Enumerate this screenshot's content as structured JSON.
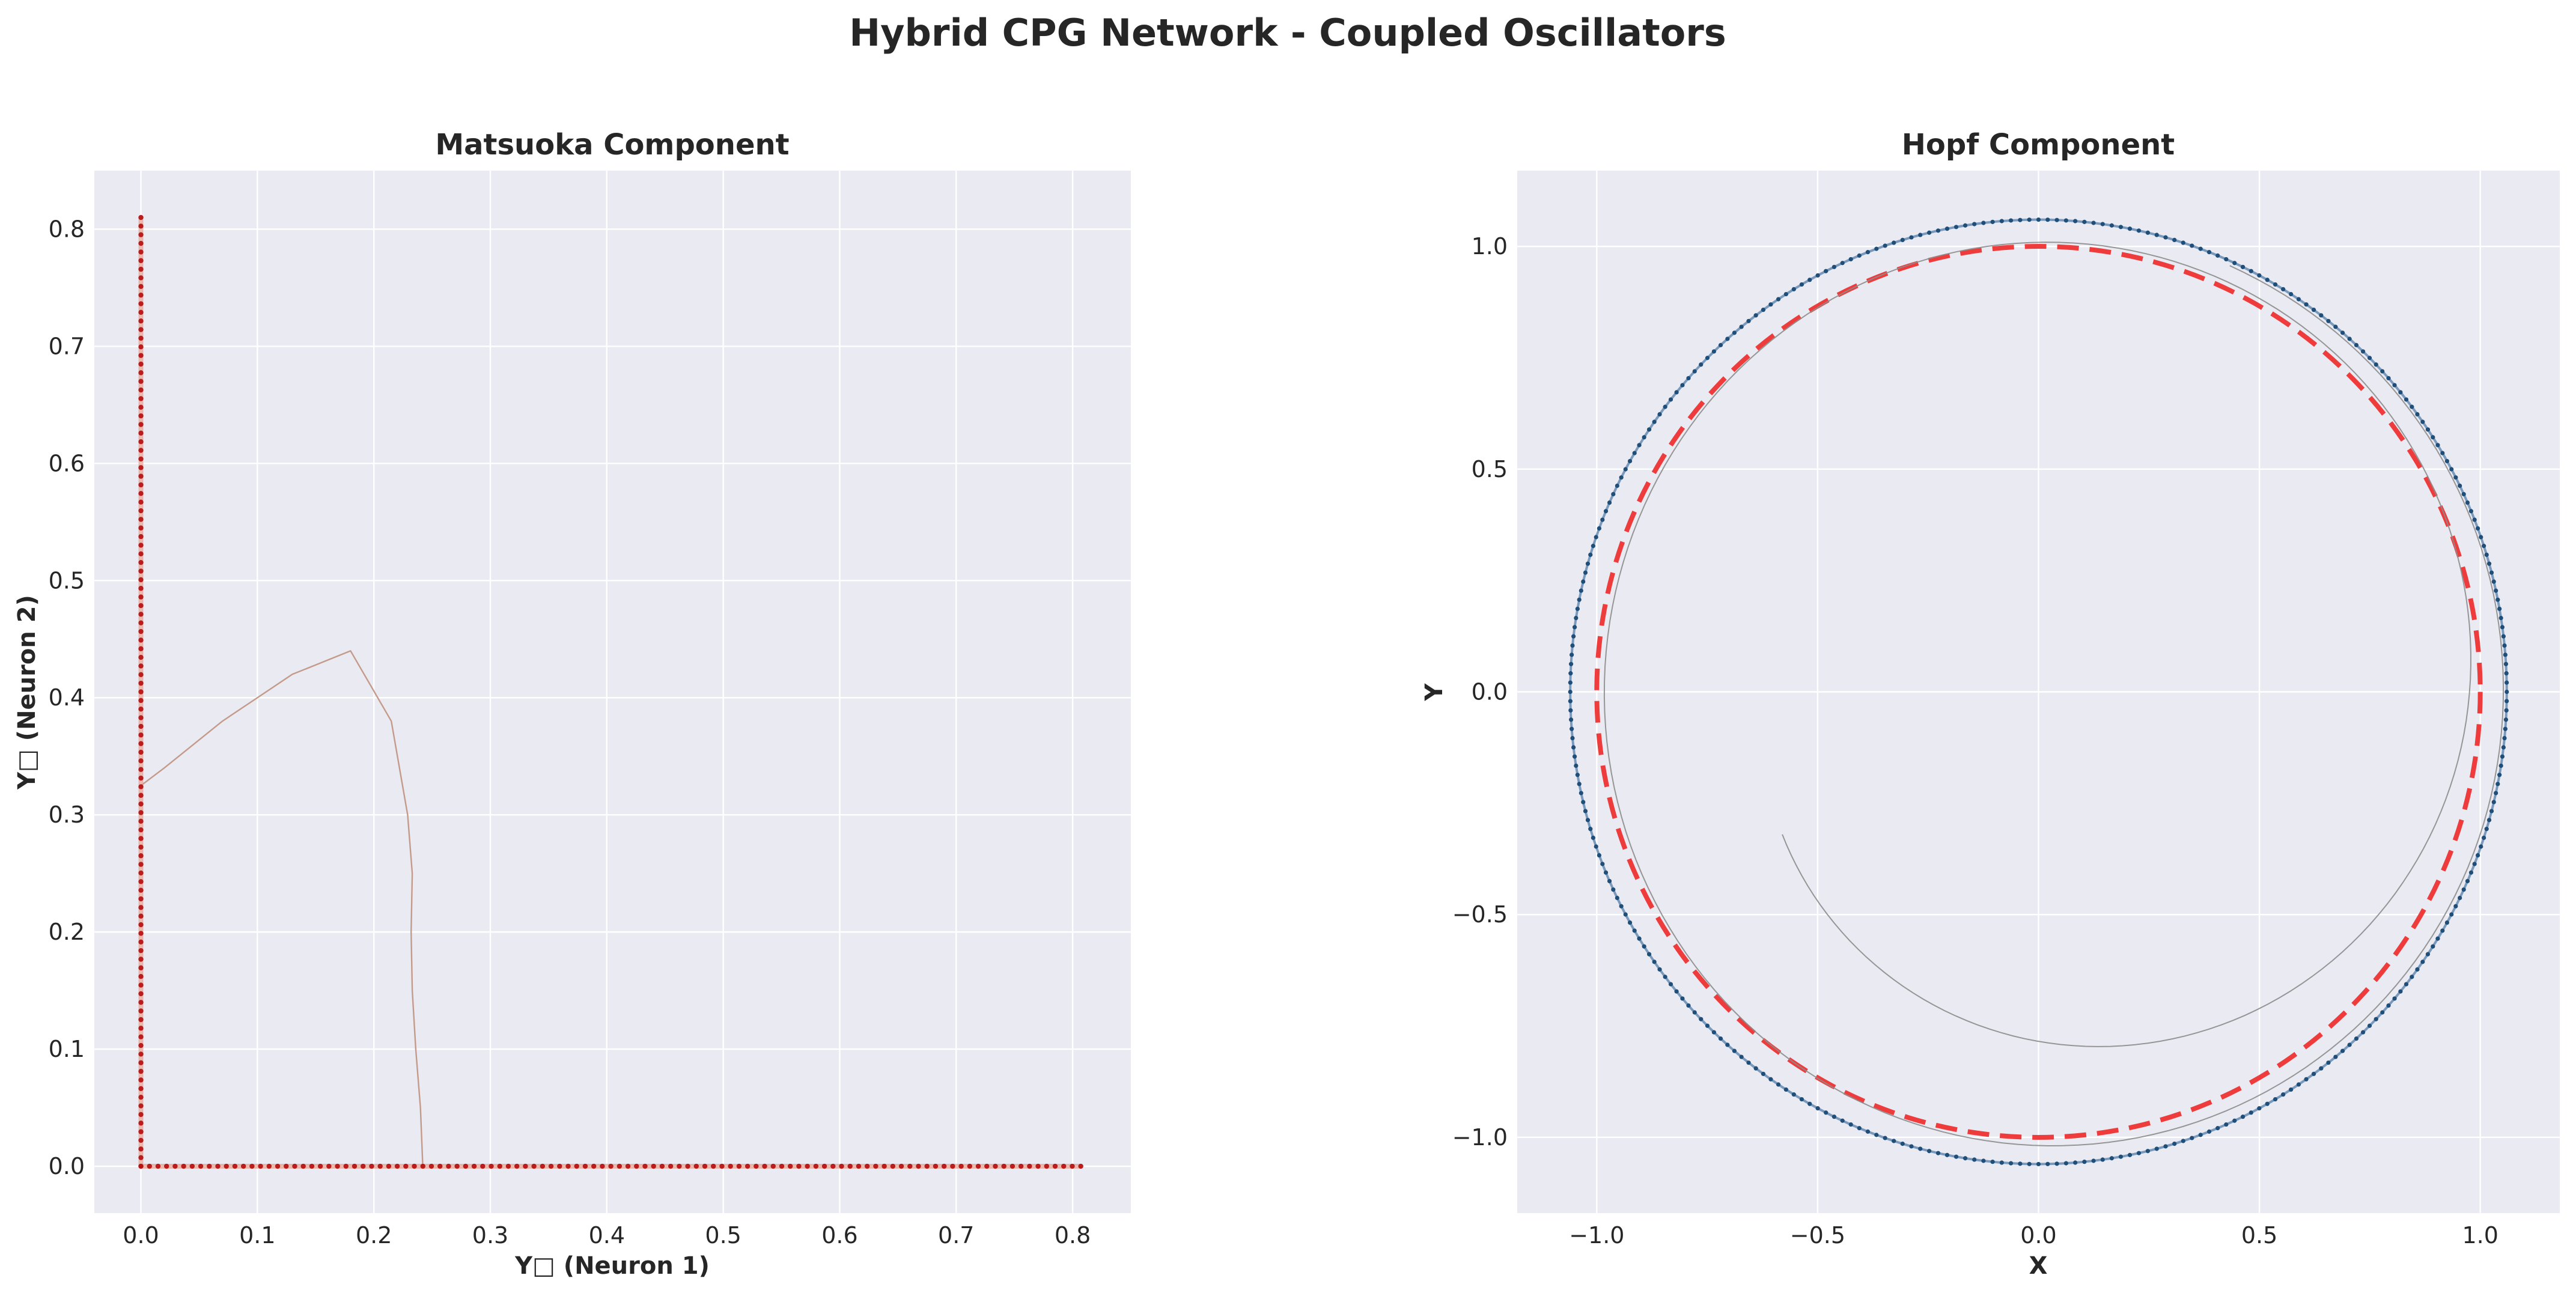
{
  "figure": {
    "suptitle": "Hybrid CPG Network - Coupled Oscillators"
  },
  "chart_data": [
    {
      "type": "scatter",
      "title": "Matsuoka Component",
      "xlabel": "Y□ (Neuron 1)",
      "ylabel": "Y□ (Neuron 2)",
      "xlim": [
        -0.04,
        0.85
      ],
      "ylim": [
        -0.04,
        0.85
      ],
      "xticks": [
        0.0,
        0.1,
        0.2,
        0.3,
        0.4,
        0.5,
        0.6,
        0.7,
        0.8
      ],
      "yticks": [
        0.0,
        0.1,
        0.2,
        0.3,
        0.4,
        0.5,
        0.6,
        0.7,
        0.8
      ],
      "tick_labels_x": [
        "0.0",
        "0.1",
        "0.2",
        "0.3",
        "0.4",
        "0.5",
        "0.6",
        "0.7",
        "0.8"
      ],
      "tick_labels_y": [
        "0.0",
        "0.1",
        "0.2",
        "0.3",
        "0.4",
        "0.5",
        "0.6",
        "0.7",
        "0.8"
      ],
      "grid": true,
      "series": [
        {
          "kind": "transient-line",
          "color": "#c49a8a",
          "x": [
            0.242,
            0.24,
            0.236,
            0.233,
            0.232,
            0.233,
            0.229,
            0.215,
            0.18,
            0.13,
            0.07,
            0.02,
            0.0
          ],
          "y": [
            0.0,
            0.05,
            0.1,
            0.15,
            0.2,
            0.25,
            0.3,
            0.38,
            0.44,
            0.42,
            0.38,
            0.34,
            0.325
          ]
        },
        {
          "kind": "limit-cycle-points",
          "color": "#b30000",
          "segments": [
            {
              "x": [
                0.0,
                0.0
              ],
              "y": [
                0.0,
                0.81
              ]
            },
            {
              "x": [
                0.0,
                0.807
              ],
              "y": [
                0.0,
                0.0
              ]
            }
          ]
        }
      ]
    },
    {
      "type": "scatter",
      "title": "Hopf Component",
      "xlabel": "X",
      "ylabel": "Y",
      "xlim": [
        -1.18,
        1.18
      ],
      "ylim": [
        -1.17,
        1.17
      ],
      "xticks": [
        -1.0,
        -0.5,
        0.0,
        0.5,
        1.0
      ],
      "yticks": [
        -1.0,
        -0.5,
        0.0,
        0.5,
        1.0
      ],
      "tick_labels_x": [
        "−1.0",
        "−0.5",
        "0.0",
        "0.5",
        "1.0"
      ],
      "tick_labels_y": [
        "−1.0",
        "−0.5",
        "0.0",
        "0.5",
        "1.0"
      ],
      "grid": true,
      "series": [
        {
          "kind": "limit-cycle-points",
          "color": "#1f4e79",
          "radius": 1.06
        },
        {
          "kind": "reference-circle",
          "color": "#ee3333",
          "style": "dashed",
          "radius": 1.0
        },
        {
          "kind": "transient-spiral",
          "color": "#8c8c8c",
          "start": [
            -0.65,
            -0.37
          ],
          "end_radius": 1.05
        }
      ]
    }
  ]
}
